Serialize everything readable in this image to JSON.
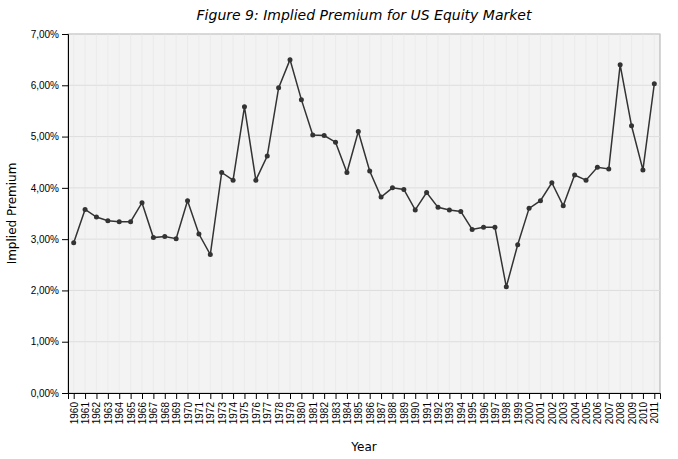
{
  "chart_data": {
    "type": "line",
    "title": "Figure 9:  Implied Premium for US Equity Market",
    "xlabel": "Year",
    "ylabel": "Implied Premium",
    "x": [
      1960,
      1961,
      1962,
      1963,
      1964,
      1965,
      1966,
      1967,
      1968,
      1969,
      1970,
      1971,
      1972,
      1973,
      1974,
      1975,
      1976,
      1977,
      1978,
      1979,
      1980,
      1981,
      1982,
      1983,
      1984,
      1985,
      1986,
      1987,
      1988,
      1989,
      1990,
      1991,
      1992,
      1993,
      1994,
      1995,
      1996,
      1997,
      1998,
      1999,
      2000,
      2001,
      2002,
      2003,
      2004,
      2005,
      2006,
      2007,
      2008,
      2009,
      2010,
      2011
    ],
    "values": [
      0.0293,
      0.0358,
      0.0343,
      0.0336,
      0.0334,
      0.0334,
      0.0371,
      0.0303,
      0.0305,
      0.0301,
      0.0375,
      0.031,
      0.027,
      0.043,
      0.0415,
      0.0558,
      0.0415,
      0.0462,
      0.0595,
      0.065,
      0.0572,
      0.0503,
      0.0502,
      0.0489,
      0.043,
      0.051,
      0.0433,
      0.0382,
      0.04,
      0.0397,
      0.0357,
      0.0391,
      0.0362,
      0.0357,
      0.0354,
      0.0319,
      0.0323,
      0.0323,
      0.0207,
      0.0289,
      0.036,
      0.0375,
      0.041,
      0.0365,
      0.0425,
      0.0415,
      0.044,
      0.0437,
      0.064,
      0.0521,
      0.0435,
      0.0603
    ],
    "color": "#333333",
    "marker": "circle",
    "grid": true,
    "xlim": [
      1959.5,
      2011.5
    ],
    "xticks": [
      1960,
      1961,
      1962,
      1963,
      1964,
      1965,
      1966,
      1967,
      1968,
      1969,
      1970,
      1971,
      1972,
      1973,
      1974,
      1975,
      1976,
      1977,
      1978,
      1979,
      1980,
      1981,
      1982,
      1983,
      1984,
      1985,
      1986,
      1987,
      1988,
      1989,
      1990,
      1991,
      1992,
      1993,
      1994,
      1995,
      1996,
      1997,
      1998,
      1999,
      2000,
      2001,
      2002,
      2003,
      2004,
      2005,
      2006,
      2007,
      2008,
      2009,
      2010,
      2011
    ],
    "ylim": [
      0.0,
      0.07
    ],
    "yticks": [
      {
        "value": 0.0,
        "label": "0,00%"
      },
      {
        "value": 0.01,
        "label": "1,00%"
      },
      {
        "value": 0.02,
        "label": "2,00%"
      },
      {
        "value": 0.03,
        "label": "3,00%"
      },
      {
        "value": 0.04,
        "label": "4,00%"
      },
      {
        "value": 0.05,
        "label": "5,00%"
      },
      {
        "value": 0.06,
        "label": "6,00%"
      },
      {
        "value": 0.07,
        "label": "7,00%"
      }
    ]
  }
}
